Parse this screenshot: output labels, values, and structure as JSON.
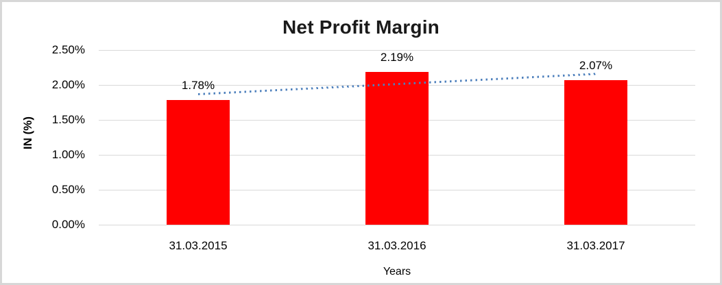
{
  "chart_data": {
    "type": "bar",
    "title": "Net Profit Margin",
    "categories": [
      "31.03.2015",
      "31.03.2016",
      "31.03.2017"
    ],
    "values": [
      1.78,
      2.19,
      2.07
    ],
    "data_labels": [
      "1.78%",
      "2.19%",
      "2.07%"
    ],
    "xlabel": "Years",
    "ylabel": "IN (%)",
    "ylim": [
      0,
      2.5
    ],
    "ytick_step": 0.5,
    "ytick_labels": [
      "0.00%",
      "0.50%",
      "1.00%",
      "1.50%",
      "2.00%",
      "2.50%"
    ],
    "grid": true,
    "legend": "none",
    "bar_color": "#ff0000",
    "gridline_color": "#d9d9d9",
    "trendline": {
      "type": "linear",
      "style": "dotted",
      "color": "#4f81bd",
      "span": "first-category-to-last-category"
    }
  }
}
